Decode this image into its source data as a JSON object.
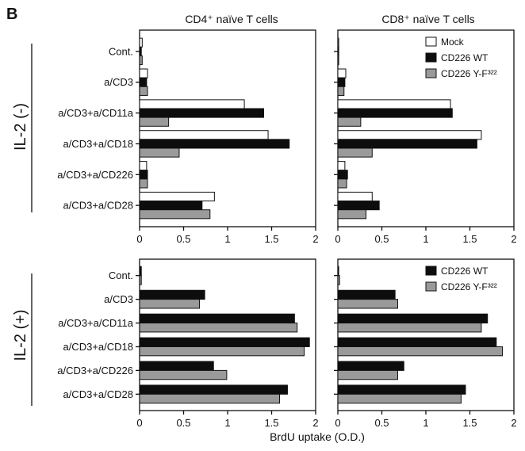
{
  "figure": {
    "panel_letter": "B",
    "column_titles": [
      "CD4⁺ naïve T cells",
      "CD8⁺ naïve T cells"
    ],
    "row_titles": [
      "IL-2 (-)",
      "IL-2 (+)"
    ],
    "x_axis_label": "BrdU uptake (O.D.)"
  },
  "series_colors": {
    "Mock": "#ffffff",
    "CD226 WT": "#0d0d0d",
    "CD226 Y-F³²²": "#9a9a9a"
  },
  "chart_data": [
    {
      "type": "bar",
      "orientation": "horizontal",
      "title": "CD4⁺ naïve T cells",
      "row": "IL-2 (-)",
      "categories": [
        "Cont.",
        "a/CD3",
        "a/CD3+a/CD11a",
        "a/CD3+a/CD18",
        "a/CD3+a/CD226",
        "a/CD3+a/CD28"
      ],
      "series": [
        {
          "name": "Mock",
          "values": [
            0.03,
            0.09,
            1.19,
            1.46,
            0.08,
            0.85
          ]
        },
        {
          "name": "CD226 WT",
          "values": [
            0.02,
            0.08,
            1.41,
            1.7,
            0.09,
            0.71
          ]
        },
        {
          "name": "CD226 Y-F³²²",
          "values": [
            0.03,
            0.09,
            0.33,
            0.45,
            0.09,
            0.8
          ]
        }
      ],
      "xlim": [
        0,
        2
      ],
      "xticks": [
        "0",
        "0.5",
        "1",
        "1.5",
        "2"
      ],
      "legend": null
    },
    {
      "type": "bar",
      "orientation": "horizontal",
      "title": "CD8⁺ naïve T cells",
      "row": "IL-2 (-)",
      "categories": [
        "Cont.",
        "a/CD3",
        "a/CD3+a/CD11a",
        "a/CD3+a/CD18",
        "a/CD3+a/CD226",
        "a/CD3+a/CD28"
      ],
      "series": [
        {
          "name": "Mock",
          "values": [
            0.01,
            0.09,
            1.28,
            1.63,
            0.08,
            0.39
          ]
        },
        {
          "name": "CD226 WT",
          "values": [
            0.01,
            0.08,
            1.3,
            1.58,
            0.11,
            0.47
          ]
        },
        {
          "name": "CD226 Y-F³²²",
          "values": [
            0.01,
            0.07,
            0.26,
            0.39,
            0.1,
            0.32
          ]
        }
      ],
      "xlim": [
        0,
        2
      ],
      "xticks": [
        "0",
        "0.5",
        "1",
        "1.5",
        "2"
      ],
      "legend": {
        "placement": "top-right",
        "entries": [
          "Mock",
          "CD226 WT",
          "CD226 Y-F³²²"
        ]
      }
    },
    {
      "type": "bar",
      "orientation": "horizontal",
      "title": "CD4⁺ naïve T cells",
      "row": "IL-2 (+)",
      "categories": [
        "Cont.",
        "a/CD3",
        "a/CD3+a/CD11a",
        "a/CD3+a/CD18",
        "a/CD3+a/CD226",
        "a/CD3+a/CD28"
      ],
      "series": [
        {
          "name": "CD226 WT",
          "values": [
            0.02,
            0.74,
            1.76,
            1.93,
            0.84,
            1.68
          ]
        },
        {
          "name": "CD226 Y-F³²²",
          "values": [
            0.02,
            0.68,
            1.79,
            1.87,
            0.99,
            1.59
          ]
        }
      ],
      "xlim": [
        0,
        2
      ],
      "xticks": [
        "0",
        "0.5",
        "1",
        "1.5",
        "2"
      ],
      "legend": null
    },
    {
      "type": "bar",
      "orientation": "horizontal",
      "title": "CD8⁺ naïve T cells",
      "row": "IL-2 (+)",
      "categories": [
        "Cont.",
        "a/CD3",
        "a/CD3+a/CD11a",
        "a/CD3+a/CD18",
        "a/CD3+a/CD226",
        "a/CD3+a/CD28"
      ],
      "series": [
        {
          "name": "CD226 WT",
          "values": [
            0.01,
            0.65,
            1.7,
            1.8,
            0.75,
            1.45
          ]
        },
        {
          "name": "CD226 Y-F³²²",
          "values": [
            0.02,
            0.68,
            1.63,
            1.87,
            0.68,
            1.4
          ]
        }
      ],
      "xlim": [
        0,
        2
      ],
      "xticks": [
        "0",
        "0.5",
        "1",
        "1.5",
        "2"
      ],
      "legend": {
        "placement": "top-right",
        "entries": [
          "CD226 WT",
          "CD226 Y-F³²²"
        ]
      }
    }
  ]
}
